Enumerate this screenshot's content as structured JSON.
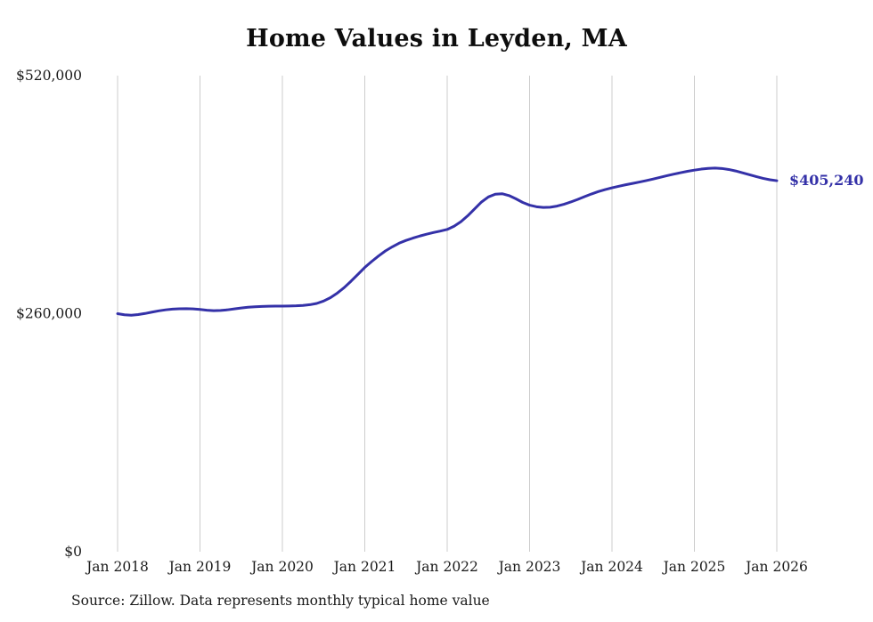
{
  "chart_data": {
    "type": "line",
    "title": "Home Values in Leyden, MA",
    "source": "Source: Zillow. Data represents monthly typical home value",
    "end_label": "$405,240",
    "end_value": 405240,
    "line_color": "#3431a8",
    "grid_color": "#cccccc",
    "text_color": "#1a1a1a",
    "frequency": "monthly",
    "legend": false,
    "grid": "vertical-only",
    "x_tick_labels": [
      "Jan 2018",
      "Jan 2019",
      "Jan 2020",
      "Jan 2021",
      "Jan 2022",
      "Jan 2023",
      "Jan 2024",
      "Jan 2025",
      "Jan 2026"
    ],
    "y_ticks": [
      {
        "label": "$0",
        "value": 0
      },
      {
        "label": "$260,000",
        "value": 260000
      },
      {
        "label": "$520,000",
        "value": 520000
      }
    ],
    "ylim": [
      0,
      520000
    ],
    "x_range": [
      "Jan 2018",
      "Jan 2026"
    ],
    "series": [
      {
        "name": "Typical home value",
        "values": [
          260000,
          258800,
          258300,
          259000,
          260200,
          261700,
          263100,
          264200,
          265000,
          265400,
          265500,
          265200,
          264600,
          263800,
          263300,
          263500,
          264200,
          265200,
          266200,
          267000,
          267500,
          267900,
          268100,
          268200,
          268300,
          268400,
          268600,
          269000,
          269800,
          271200,
          273800,
          277500,
          282500,
          288500,
          295500,
          303000,
          310500,
          317000,
          323000,
          328500,
          333000,
          337000,
          340000,
          342500,
          344800,
          346800,
          348600,
          350200,
          352000,
          355500,
          360500,
          367000,
          374500,
          382000,
          387500,
          390500,
          391000,
          389000,
          385500,
          381500,
          378500,
          376800,
          376000,
          376300,
          377500,
          379500,
          382000,
          384800,
          387800,
          390700,
          393300,
          395500,
          397500,
          399200,
          400800,
          402300,
          403800,
          405400,
          407100,
          408900,
          410700,
          412400,
          414000,
          415500,
          416800,
          417900,
          418700,
          419000,
          418600,
          417500,
          415900,
          413900,
          411800,
          409700,
          407800,
          406300,
          405240
        ]
      }
    ]
  }
}
